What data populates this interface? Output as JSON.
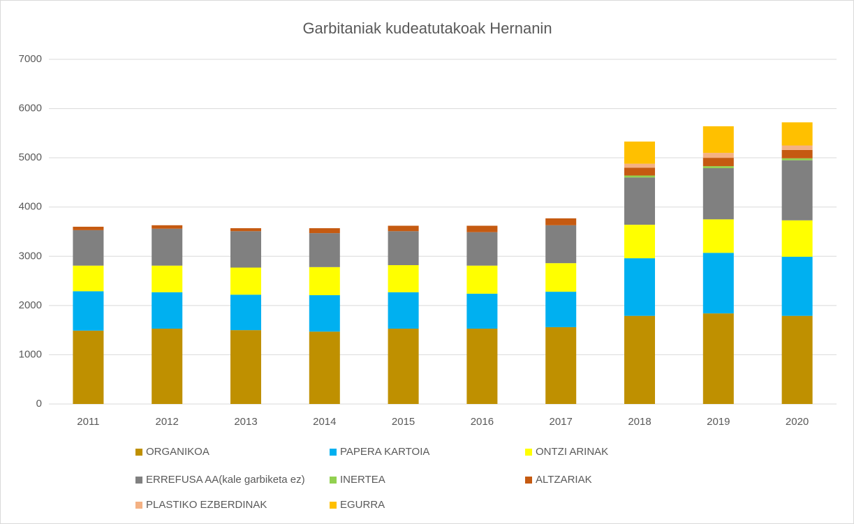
{
  "chart_data": {
    "type": "stacked_bar",
    "title": "Garbitaniak kudeatutakoak Hernanin",
    "categories": [
      "2011",
      "2012",
      "2013",
      "2014",
      "2015",
      "2016",
      "2017",
      "2018",
      "2019",
      "2020"
    ],
    "series": [
      {
        "name": "ORGANIKOA",
        "color": "#bf9000",
        "values": [
          1490,
          1530,
          1500,
          1470,
          1530,
          1530,
          1560,
          1790,
          1840,
          1790
        ]
      },
      {
        "name": "PAPERA KARTOIA",
        "color": "#00b0f0",
        "values": [
          800,
          740,
          720,
          740,
          740,
          710,
          720,
          1170,
          1230,
          1200
        ]
      },
      {
        "name": "ONTZI ARINAK",
        "color": "#ffff00",
        "values": [
          520,
          540,
          550,
          570,
          550,
          570,
          580,
          680,
          680,
          740
        ]
      },
      {
        "name": "ERREFUSA AA(kale garbiketa ez)",
        "color": "#808080",
        "values": [
          720,
          750,
          740,
          690,
          690,
          680,
          770,
          960,
          1040,
          1220
        ]
      },
      {
        "name": "INERTEA",
        "color": "#92d050",
        "values": [
          0,
          0,
          0,
          0,
          0,
          0,
          0,
          40,
          40,
          40
        ]
      },
      {
        "name": "ALTZARIAK",
        "color": "#c55a11",
        "values": [
          70,
          70,
          60,
          100,
          110,
          130,
          140,
          160,
          170,
          170
        ]
      },
      {
        "name": "PLASTIKO EZBERDINAK",
        "color": "#f4b183",
        "values": [
          0,
          0,
          0,
          0,
          0,
          0,
          0,
          80,
          100,
          90
        ]
      },
      {
        "name": "EGURRA",
        "color": "#ffc000",
        "values": [
          0,
          0,
          0,
          0,
          0,
          0,
          0,
          450,
          540,
          470
        ]
      }
    ],
    "ylim": [
      0,
      7000
    ],
    "yticks": [
      0,
      1000,
      2000,
      3000,
      4000,
      5000,
      6000,
      7000
    ],
    "grid": true
  }
}
